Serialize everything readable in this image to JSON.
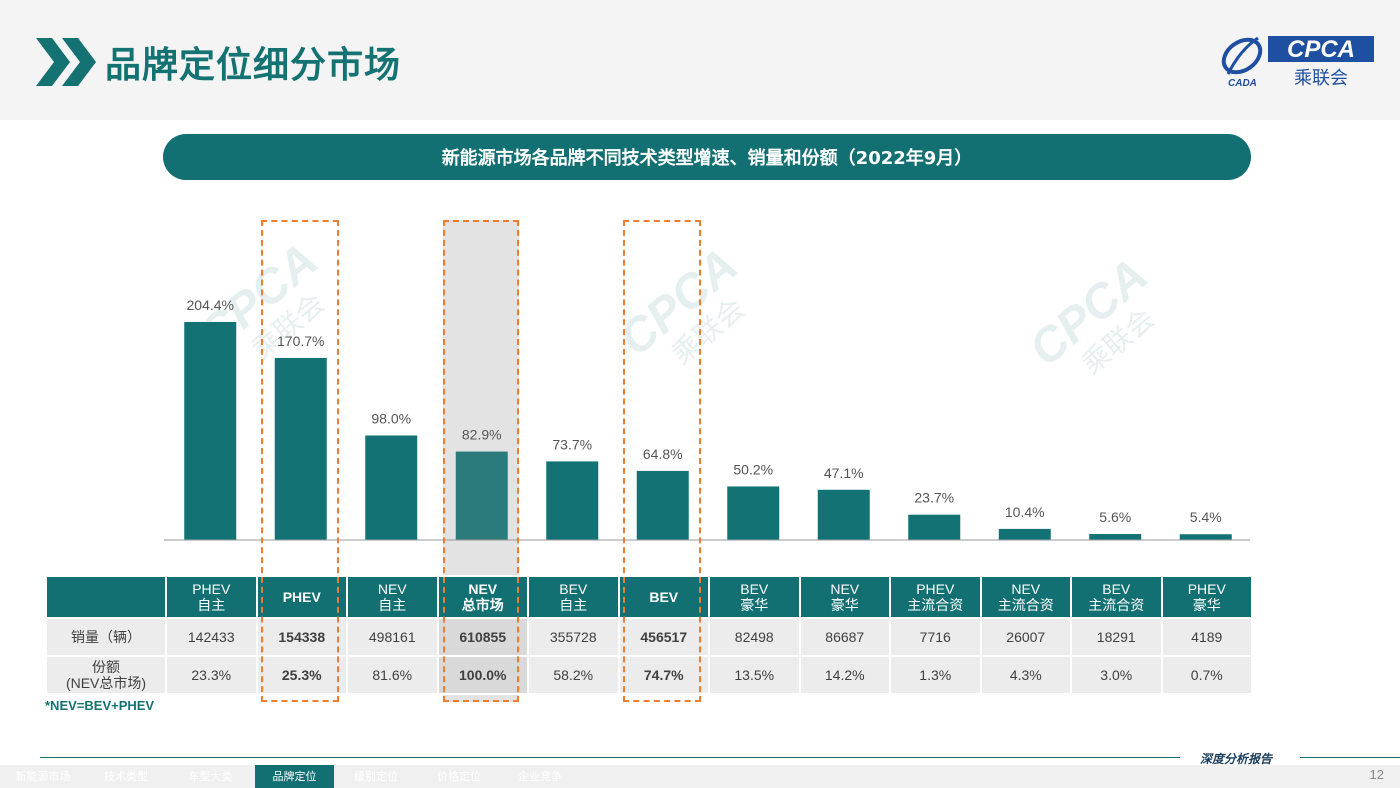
{
  "header": {
    "title": "品牌定位细分市场",
    "logo_text": "CPCA",
    "logo_sub": "乘联会",
    "logo_mark": "CADA"
  },
  "banner": {
    "title": "新能源市场各品牌不同技术类型增速、销量和份额（2022年9月）"
  },
  "chart_data": {
    "type": "bar",
    "title": "新能源市场各品牌不同技术类型增速、销量和份额（2022年9月）",
    "categories": [
      "PHEV 自主",
      "PHEV",
      "NEV 自主",
      "NEV 总市场",
      "BEV 自主",
      "BEV",
      "BEV 豪华",
      "NEV 豪华",
      "PHEV 主流合资",
      "NEV 主流合资",
      "BEV 主流合资",
      "PHEV 豪华"
    ],
    "values": [
      204.4,
      170.7,
      98.0,
      82.9,
      73.7,
      64.8,
      50.2,
      47.1,
      23.7,
      10.4,
      5.6,
      5.4
    ],
    "value_labels": [
      "204.4%",
      "170.7%",
      "98.0%",
      "82.9%",
      "73.7%",
      "64.8%",
      "50.2%",
      "47.1%",
      "23.7%",
      "10.4%",
      "5.6%",
      "5.4%"
    ],
    "unit": "%",
    "ylim": [
      0,
      204.4
    ],
    "grid": false,
    "highlighted": [
      "PHEV",
      "NEV 总市场",
      "BEV"
    ],
    "colors": {
      "bar": "#137273",
      "highlight_border": "#ef7d31"
    }
  },
  "table": {
    "columns": [
      {
        "line1": "PHEV",
        "line2": "自主",
        "bold": false
      },
      {
        "line1": "PHEV",
        "line2": "",
        "bold": true
      },
      {
        "line1": "NEV",
        "line2": "自主",
        "bold": false
      },
      {
        "line1": "NEV",
        "line2": "总市场",
        "bold": true
      },
      {
        "line1": "BEV",
        "line2": "自主",
        "bold": false
      },
      {
        "line1": "BEV",
        "line2": "",
        "bold": true
      },
      {
        "line1": "BEV",
        "line2": "豪华",
        "bold": false
      },
      {
        "line1": "NEV",
        "line2": "豪华",
        "bold": false
      },
      {
        "line1": "PHEV",
        "line2": "主流合资",
        "bold": false
      },
      {
        "line1": "NEV",
        "line2": "主流合资",
        "bold": false
      },
      {
        "line1": "BEV",
        "line2": "主流合资",
        "bold": false
      },
      {
        "line1": "PHEV",
        "line2": "豪华",
        "bold": false
      }
    ],
    "rows": [
      {
        "label": "销量（辆）",
        "label2": "",
        "values": [
          "142433",
          "154338",
          "498161",
          "610855",
          "355728",
          "456517",
          "82498",
          "86687",
          "7716",
          "26007",
          "18291",
          "4189"
        ]
      },
      {
        "label": "份额",
        "label2": "(NEV总市场)",
        "values": [
          "23.3%",
          "25.3%",
          "81.6%",
          "100.0%",
          "58.2%",
          "74.7%",
          "13.5%",
          "14.2%",
          "1.3%",
          "4.3%",
          "3.0%",
          "0.7%"
        ]
      }
    ]
  },
  "footnote": "*NEV=BEV+PHEV",
  "footer": {
    "report_label": "深度分析报告",
    "page_number": "12",
    "nav": [
      "新能源市场",
      "技术类型",
      "车型大类",
      "品牌定位",
      "级别定位",
      "价格定位",
      "企业竞争"
    ],
    "active_nav": "品牌定位"
  }
}
